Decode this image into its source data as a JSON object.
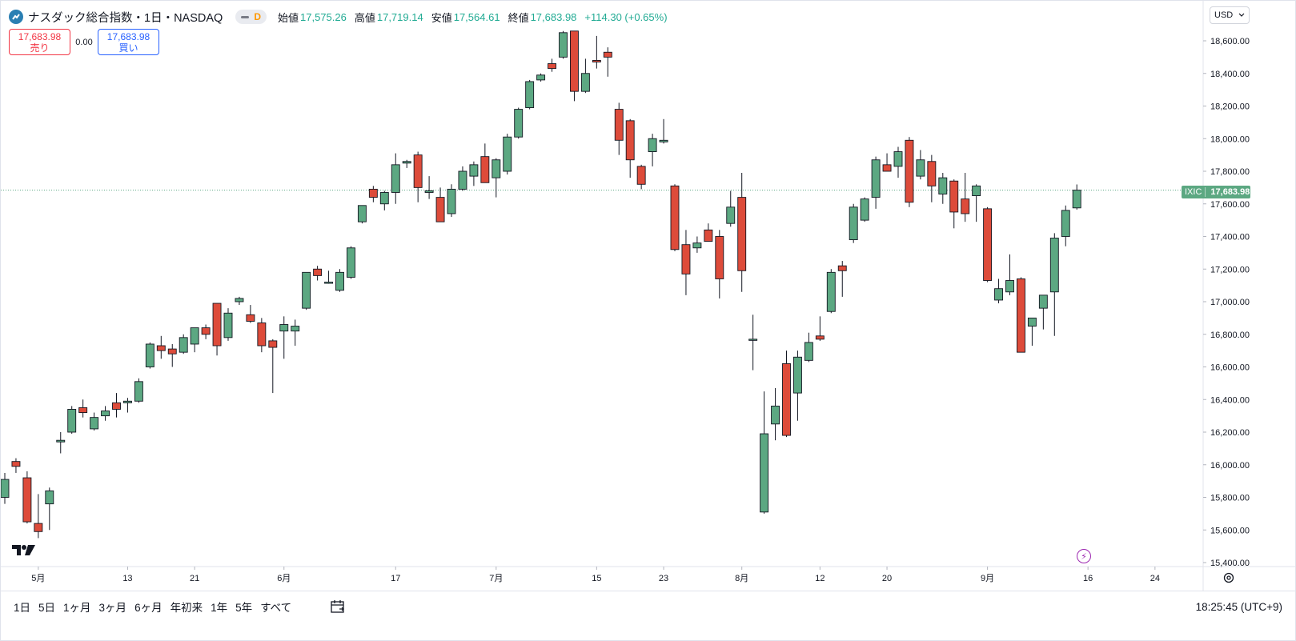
{
  "header": {
    "title": "ナスダック総合指数・1日・NASDAQ",
    "interval_badge": "D",
    "open_label": "始値",
    "open": "17,575.26",
    "high_label": "高値",
    "high": "17,719.14",
    "low_label": "安値",
    "low": "17,564.61",
    "close_label": "終値",
    "close": "17,683.98",
    "change": "+114.30 (+0.65%)",
    "up_color": "#22ab94"
  },
  "trade": {
    "sell_price": "17,683.98",
    "sell_label": "売り",
    "spread": "0.00",
    "buy_price": "17,683.98",
    "buy_label": "買い"
  },
  "currency": "USD",
  "last_price_label": {
    "symbol": "IXIC",
    "value": "17,683.98"
  },
  "bottom": {
    "ranges": [
      "1日",
      "5日",
      "1ヶ月",
      "3ヶ月",
      "6ヶ月",
      "年初来",
      "1年",
      "5年",
      "すべて"
    ],
    "clock": "18:25:45 (UTC+9)"
  },
  "chart_data": {
    "type": "candlestick",
    "title": "ナスダック総合指数",
    "ylim": [
      15400,
      18700
    ],
    "y_ticks": [
      "15,400.00",
      "15,600.00",
      "15,800.00",
      "16,000.00",
      "16,200.00",
      "16,400.00",
      "16,600.00",
      "16,800.00",
      "17,000.00",
      "17,200.00",
      "17,400.00",
      "17,600.00",
      "17,800.00",
      "18,000.00",
      "18,200.00",
      "18,400.00",
      "18,600.00"
    ],
    "x_ticks": [
      {
        "index": 3,
        "label": "5月"
      },
      {
        "index": 11,
        "label": "13"
      },
      {
        "index": 17,
        "label": "21"
      },
      {
        "index": 25,
        "label": "6月"
      },
      {
        "index": 35,
        "label": "17"
      },
      {
        "index": 44,
        "label": "7月"
      },
      {
        "index": 53,
        "label": "15"
      },
      {
        "index": 59,
        "label": "23"
      },
      {
        "index": 66,
        "label": "8月"
      },
      {
        "index": 73,
        "label": "12"
      },
      {
        "index": 79,
        "label": "20"
      },
      {
        "index": 88,
        "label": "9月"
      },
      {
        "index": 97,
        "label": "16"
      },
      {
        "index": 103,
        "label": "24"
      }
    ],
    "up_color": "#5ca882",
    "down_color": "#dd4b3a",
    "last_price": 17683.98,
    "candles": [
      {
        "o": 15800,
        "h": 15950,
        "l": 15760,
        "c": 15910
      },
      {
        "o": 16020,
        "h": 16040,
        "l": 15950,
        "c": 15990
      },
      {
        "o": 15920,
        "h": 15960,
        "l": 15640,
        "c": 15650
      },
      {
        "o": 15640,
        "h": 15820,
        "l": 15550,
        "c": 15590
      },
      {
        "o": 15760,
        "h": 15860,
        "l": 15600,
        "c": 15840
      },
      {
        "o": 16140,
        "h": 16200,
        "l": 16070,
        "c": 16150
      },
      {
        "o": 16200,
        "h": 16360,
        "l": 16190,
        "c": 16340
      },
      {
        "o": 16350,
        "h": 16400,
        "l": 16290,
        "c": 16320
      },
      {
        "o": 16220,
        "h": 16320,
        "l": 16210,
        "c": 16290
      },
      {
        "o": 16300,
        "h": 16360,
        "l": 16270,
        "c": 16330
      },
      {
        "o": 16380,
        "h": 16440,
        "l": 16290,
        "c": 16340
      },
      {
        "o": 16380,
        "h": 16410,
        "l": 16320,
        "c": 16390
      },
      {
        "o": 16390,
        "h": 16530,
        "l": 16380,
        "c": 16510
      },
      {
        "o": 16600,
        "h": 16750,
        "l": 16590,
        "c": 16740
      },
      {
        "o": 16730,
        "h": 16790,
        "l": 16650,
        "c": 16700
      },
      {
        "o": 16710,
        "h": 16740,
        "l": 16600,
        "c": 16680
      },
      {
        "o": 16690,
        "h": 16800,
        "l": 16680,
        "c": 16780
      },
      {
        "o": 16740,
        "h": 16830,
        "l": 16690,
        "c": 16840
      },
      {
        "o": 16840,
        "h": 16860,
        "l": 16770,
        "c": 16800
      },
      {
        "o": 16990,
        "h": 16990,
        "l": 16670,
        "c": 16730
      },
      {
        "o": 16780,
        "h": 16960,
        "l": 16760,
        "c": 16930
      },
      {
        "o": 17000,
        "h": 17030,
        "l": 16980,
        "c": 17020
      },
      {
        "o": 16920,
        "h": 16980,
        "l": 16870,
        "c": 16880
      },
      {
        "o": 16870,
        "h": 16900,
        "l": 16690,
        "c": 16730
      },
      {
        "o": 16760,
        "h": 16770,
        "l": 16440,
        "c": 16720
      },
      {
        "o": 16820,
        "h": 16910,
        "l": 16650,
        "c": 16860
      },
      {
        "o": 16820,
        "h": 16890,
        "l": 16730,
        "c": 16850
      },
      {
        "o": 16960,
        "h": 17180,
        "l": 16950,
        "c": 17180
      },
      {
        "o": 17200,
        "h": 17220,
        "l": 17130,
        "c": 17160
      },
      {
        "o": 17120,
        "h": 17190,
        "l": 17110,
        "c": 17120
      },
      {
        "o": 17070,
        "h": 17200,
        "l": 17060,
        "c": 17180
      },
      {
        "o": 17150,
        "h": 17340,
        "l": 17140,
        "c": 17330
      },
      {
        "o": 17490,
        "h": 17590,
        "l": 17480,
        "c": 17590
      },
      {
        "o": 17690,
        "h": 17710,
        "l": 17610,
        "c": 17640
      },
      {
        "o": 17600,
        "h": 17680,
        "l": 17560,
        "c": 17670
      },
      {
        "o": 17670,
        "h": 17910,
        "l": 17600,
        "c": 17840
      },
      {
        "o": 17850,
        "h": 17870,
        "l": 17820,
        "c": 17860
      },
      {
        "o": 17900,
        "h": 17920,
        "l": 17610,
        "c": 17700
      },
      {
        "o": 17670,
        "h": 17770,
        "l": 17630,
        "c": 17680
      },
      {
        "o": 17640,
        "h": 17700,
        "l": 17490,
        "c": 17490
      },
      {
        "o": 17540,
        "h": 17720,
        "l": 17520,
        "c": 17690
      },
      {
        "o": 17690,
        "h": 17830,
        "l": 17680,
        "c": 17800
      },
      {
        "o": 17770,
        "h": 17860,
        "l": 17710,
        "c": 17840
      },
      {
        "o": 17890,
        "h": 17970,
        "l": 17730,
        "c": 17730
      },
      {
        "o": 17760,
        "h": 17880,
        "l": 17640,
        "c": 17870
      },
      {
        "o": 17800,
        "h": 18030,
        "l": 17780,
        "c": 18010
      },
      {
        "o": 18010,
        "h": 18190,
        "l": 18000,
        "c": 18180
      },
      {
        "o": 18190,
        "h": 18360,
        "l": 18180,
        "c": 18350
      },
      {
        "o": 18360,
        "h": 18400,
        "l": 18350,
        "c": 18390
      },
      {
        "o": 18460,
        "h": 18490,
        "l": 18410,
        "c": 18430
      },
      {
        "o": 18500,
        "h": 18660,
        "l": 18490,
        "c": 18650
      },
      {
        "o": 18660,
        "h": 18660,
        "l": 18230,
        "c": 18290
      },
      {
        "o": 18290,
        "h": 18490,
        "l": 18280,
        "c": 18400
      },
      {
        "o": 18480,
        "h": 18630,
        "l": 18430,
        "c": 18470
      },
      {
        "o": 18530,
        "h": 18560,
        "l": 18380,
        "c": 18500
      },
      {
        "o": 18180,
        "h": 18220,
        "l": 17900,
        "c": 17990
      },
      {
        "o": 18110,
        "h": 18120,
        "l": 17760,
        "c": 17870
      },
      {
        "o": 17830,
        "h": 17840,
        "l": 17690,
        "c": 17720
      },
      {
        "o": 17920,
        "h": 18030,
        "l": 17830,
        "c": 18000
      },
      {
        "o": 17980,
        "h": 18120,
        "l": 17970,
        "c": 17990
      },
      {
        "o": 17710,
        "h": 17720,
        "l": 17310,
        "c": 17320
      },
      {
        "o": 17350,
        "h": 17440,
        "l": 17040,
        "c": 17170
      },
      {
        "o": 17330,
        "h": 17400,
        "l": 17300,
        "c": 17360
      },
      {
        "o": 17440,
        "h": 17480,
        "l": 17390,
        "c": 17370
      },
      {
        "o": 17400,
        "h": 17440,
        "l": 17020,
        "c": 17140
      },
      {
        "o": 17480,
        "h": 17680,
        "l": 17460,
        "c": 17580
      },
      {
        "o": 17640,
        "h": 17790,
        "l": 17060,
        "c": 17190
      },
      {
        "o": 16770,
        "h": 16920,
        "l": 16580,
        "c": 16770
      },
      {
        "o": 15710,
        "h": 16450,
        "l": 15700,
        "c": 16190
      },
      {
        "o": 16250,
        "h": 16470,
        "l": 16150,
        "c": 16360
      },
      {
        "o": 16620,
        "h": 16700,
        "l": 16170,
        "c": 16180
      },
      {
        "o": 16440,
        "h": 16700,
        "l": 16270,
        "c": 16660
      },
      {
        "o": 16640,
        "h": 16810,
        "l": 16630,
        "c": 16750
      },
      {
        "o": 16790,
        "h": 16910,
        "l": 16760,
        "c": 16770
      },
      {
        "o": 16940,
        "h": 17200,
        "l": 16930,
        "c": 17180
      },
      {
        "o": 17220,
        "h": 17250,
        "l": 17030,
        "c": 17190
      },
      {
        "o": 17380,
        "h": 17600,
        "l": 17360,
        "c": 17580
      },
      {
        "o": 17500,
        "h": 17640,
        "l": 17490,
        "c": 17630
      },
      {
        "o": 17640,
        "h": 17890,
        "l": 17570,
        "c": 17870
      },
      {
        "o": 17840,
        "h": 17910,
        "l": 17800,
        "c": 17800
      },
      {
        "o": 17830,
        "h": 17950,
        "l": 17760,
        "c": 17920
      },
      {
        "o": 17990,
        "h": 18010,
        "l": 17580,
        "c": 17610
      },
      {
        "o": 17770,
        "h": 17930,
        "l": 17750,
        "c": 17870
      },
      {
        "o": 17860,
        "h": 17900,
        "l": 17610,
        "c": 17710
      },
      {
        "o": 17660,
        "h": 17790,
        "l": 17600,
        "c": 17760
      },
      {
        "o": 17740,
        "h": 17750,
        "l": 17450,
        "c": 17550
      },
      {
        "o": 17630,
        "h": 17790,
        "l": 17490,
        "c": 17540
      },
      {
        "o": 17650,
        "h": 17720,
        "l": 17490,
        "c": 17710
      },
      {
        "o": 17570,
        "h": 17580,
        "l": 17120,
        "c": 17130
      },
      {
        "o": 17010,
        "h": 17140,
        "l": 16990,
        "c": 17080
      },
      {
        "o": 17060,
        "h": 17290,
        "l": 17040,
        "c": 17130
      },
      {
        "o": 17140,
        "h": 17150,
        "l": 16690,
        "c": 16690
      },
      {
        "o": 16850,
        "h": 16900,
        "l": 16730,
        "c": 16900
      },
      {
        "o": 16960,
        "h": 17040,
        "l": 16830,
        "c": 17040
      },
      {
        "o": 17060,
        "h": 17420,
        "l": 16790,
        "c": 17390
      },
      {
        "o": 17400,
        "h": 17590,
        "l": 17340,
        "c": 17560
      },
      {
        "o": 17575.26,
        "h": 17719.14,
        "l": 17564.61,
        "c": 17683.98
      }
    ]
  }
}
